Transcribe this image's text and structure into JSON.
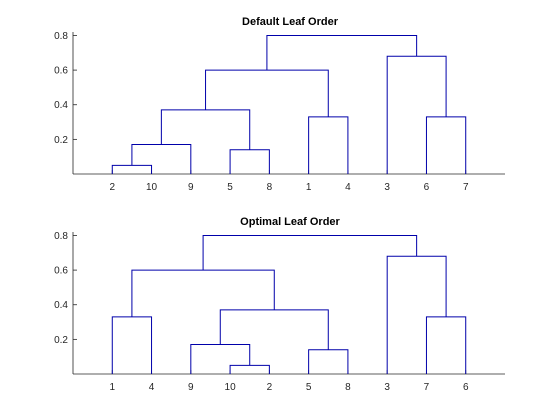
{
  "chart_data": [
    {
      "type": "dendrogram",
      "title": "Default Leaf Order",
      "ylim": [
        0,
        0.82
      ],
      "yticks": [
        0.2,
        0.4,
        0.6,
        0.8
      ],
      "ytick_labels": [
        "0.2",
        "0.4",
        "0.6",
        "0.8"
      ],
      "leaf_order": [
        "2",
        "10",
        "9",
        "5",
        "8",
        "1",
        "4",
        "3",
        "6",
        "7"
      ],
      "merges": [
        {
          "left": "2",
          "right": "10",
          "height": 0.05
        },
        {
          "left": "2+10",
          "right": "9",
          "height": 0.17
        },
        {
          "left": "5",
          "right": "8",
          "height": 0.14
        },
        {
          "left": "2+10+9",
          "right": "5+8",
          "height": 0.37
        },
        {
          "left": "1",
          "right": "4",
          "height": 0.33
        },
        {
          "left": "2+10+9+5+8",
          "right": "1+4",
          "height": 0.6
        },
        {
          "left": "6",
          "right": "7",
          "height": 0.33
        },
        {
          "left": "3",
          "right": "6+7",
          "height": 0.68
        },
        {
          "left": "2+10+9+5+8+1+4",
          "right": "3+6+7",
          "height": 0.8
        }
      ]
    },
    {
      "type": "dendrogram",
      "title": "Optimal Leaf Order",
      "ylim": [
        0,
        0.82
      ],
      "yticks": [
        0.2,
        0.4,
        0.6,
        0.8
      ],
      "ytick_labels": [
        "0.2",
        "0.4",
        "0.6",
        "0.8"
      ],
      "leaf_order": [
        "1",
        "4",
        "9",
        "10",
        "2",
        "5",
        "8",
        "3",
        "7",
        "6"
      ],
      "merges": [
        {
          "left": "1",
          "right": "4",
          "height": 0.33
        },
        {
          "left": "10",
          "right": "2",
          "height": 0.05
        },
        {
          "left": "9",
          "right": "10+2",
          "height": 0.17
        },
        {
          "left": "5",
          "right": "8",
          "height": 0.14
        },
        {
          "left": "9+10+2",
          "right": "5+8",
          "height": 0.37
        },
        {
          "left": "1+4",
          "right": "9+10+2+5+8",
          "height": 0.6
        },
        {
          "left": "7",
          "right": "6",
          "height": 0.33
        },
        {
          "left": "3",
          "right": "7+6",
          "height": 0.68
        },
        {
          "left": "1+4+9+10+2+5+8",
          "right": "3+7+6",
          "height": 0.8
        }
      ]
    }
  ]
}
